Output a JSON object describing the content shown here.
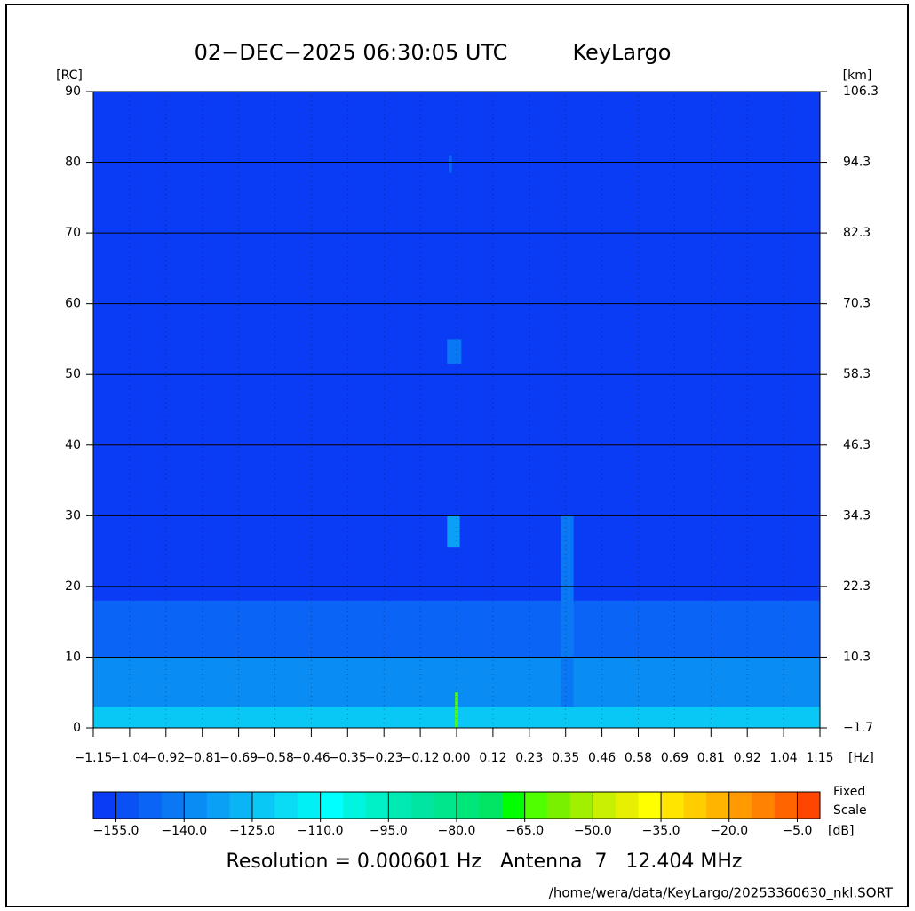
{
  "chart_data": {
    "type": "heatmap",
    "title": "02−DEC−2025 06:30:05 UTC",
    "site": "KeyLargo",
    "ylabel": "[RC]",
    "y2label": "[km]",
    "xlabel": "[Hz]",
    "xlim": [
      -1.15,
      1.15
    ],
    "xticks": [
      {
        "value": -1.15,
        "label": "−1.15"
      },
      {
        "value": -1.035,
        "label": "−1.04"
      },
      {
        "value": -0.92,
        "label": "−0.92"
      },
      {
        "value": -0.805,
        "label": "−0.81"
      },
      {
        "value": -0.69,
        "label": "−0.69"
      },
      {
        "value": -0.575,
        "label": "−0.58"
      },
      {
        "value": -0.46,
        "label": "−0.46"
      },
      {
        "value": -0.345,
        "label": "−0.35"
      },
      {
        "value": -0.23,
        "label": "−0.23"
      },
      {
        "value": -0.115,
        "label": "−0.12"
      },
      {
        "value": 0,
        "label": "0.00"
      },
      {
        "value": 0.115,
        "label": "0.12"
      },
      {
        "value": 0.23,
        "label": "0.23"
      },
      {
        "value": 0.345,
        "label": "0.35"
      },
      {
        "value": 0.46,
        "label": "0.46"
      },
      {
        "value": 0.575,
        "label": "0.58"
      },
      {
        "value": 0.69,
        "label": "0.69"
      },
      {
        "value": 0.805,
        "label": "0.81"
      },
      {
        "value": 0.92,
        "label": "0.92"
      },
      {
        "value": 1.035,
        "label": "1.04"
      },
      {
        "value": 1.15,
        "label": "1.15"
      }
    ],
    "ylim": [
      0,
      90
    ],
    "yticks": [
      0,
      10,
      20,
      30,
      40,
      50,
      60,
      70,
      80,
      90
    ],
    "y2lim": [
      -1.7,
      106.3
    ],
    "y2ticks": [
      {
        "value": -1.7,
        "label": "−1.7"
      },
      10.3,
      22.3,
      34.3,
      46.3,
      58.3,
      70.3,
      82.3,
      94.3,
      106.3
    ],
    "grid": true,
    "background": -157,
    "bands": [
      {
        "y": [
          0,
          3
        ],
        "value": -122
      },
      {
        "y": [
          3,
          10
        ],
        "value": -140
      },
      {
        "y": [
          10,
          18
        ],
        "value": -150
      }
    ],
    "spots": [
      {
        "x": [
          -0.005,
          0.005
        ],
        "y": [
          0,
          5
        ],
        "value": -65
      },
      {
        "x": [
          -0.03,
          0.01
        ],
        "y": [
          25.5,
          30
        ],
        "value": -133
      },
      {
        "x": [
          -0.03,
          0.015
        ],
        "y": [
          51.5,
          55
        ],
        "value": -143
      },
      {
        "x": [
          0.33,
          0.37
        ],
        "y": [
          3,
          30
        ],
        "value": -143
      },
      {
        "x": [
          -0.025,
          -0.015
        ],
        "y": [
          78.5,
          81
        ],
        "value": -150
      }
    ],
    "colorbar": {
      "lim": [
        -160,
        0
      ],
      "ticks": [
        {
          "value": -155,
          "label": "−155.0"
        },
        {
          "value": -140,
          "label": "−140.0"
        },
        {
          "value": -125,
          "label": "−125.0"
        },
        {
          "value": -110,
          "label": "−110.0"
        },
        {
          "value": -95,
          "label": "−95.0"
        },
        {
          "value": -80,
          "label": "−80.0"
        },
        {
          "value": -65,
          "label": "−65.0"
        },
        {
          "value": -50,
          "label": "−50.0"
        },
        {
          "value": -35,
          "label": "−35.0"
        },
        {
          "value": -20,
          "label": "−20.0"
        },
        {
          "value": -5,
          "label": "−5.0"
        }
      ],
      "colors": [
        "#0a3cf5",
        "#0a50f5",
        "#0a64f5",
        "#0a78f5",
        "#0a8cf5",
        "#0aa0f5",
        "#0ab4f5",
        "#0ac8f5",
        "#0adcf5",
        "#00f0f5",
        "#00ffff",
        "#00f5e0",
        "#00f0c8",
        "#00ebb4",
        "#00e6a0",
        "#00e68c",
        "#00e678",
        "#00e664",
        "#00ff00",
        "#50ff00",
        "#78f000",
        "#a0f000",
        "#c8f000",
        "#e6f000",
        "#ffff00",
        "#ffe600",
        "#ffcd00",
        "#ffb400",
        "#ff9b00",
        "#ff8200",
        "#ff6400",
        "#ff4600"
      ],
      "label_top": "Fixed",
      "label_bottom": "Scale",
      "unit": "[dB]"
    },
    "footer": "Resolution = 0.000601 Hz   Antenna  7   12.404 MHz",
    "file": "/home/wera/data/KeyLargo/20253360630_nkl.SORT"
  }
}
